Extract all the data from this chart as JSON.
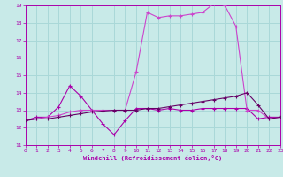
{
  "xlabel": "Windchill (Refroidissement éolien,°C)",
  "bg_color": "#c8eae8",
  "grid_color": "#aad8d8",
  "line_color1": "#aa00aa",
  "line_color2": "#cc44cc",
  "line_color3": "#660066",
  "xmin": 0,
  "xmax": 23,
  "ymin": 11,
  "ymax": 19,
  "series1_x": [
    0,
    1,
    2,
    3,
    4,
    5,
    6,
    7,
    8,
    9,
    10,
    11,
    12,
    13,
    14,
    15,
    16,
    17,
    18,
    19,
    20,
    21,
    22,
    23
  ],
  "series1_y": [
    12.4,
    12.6,
    12.6,
    13.2,
    14.4,
    13.8,
    13.0,
    12.2,
    11.6,
    12.4,
    13.1,
    13.1,
    13.0,
    13.1,
    13.0,
    13.0,
    13.1,
    13.1,
    13.1,
    13.1,
    13.1,
    12.5,
    12.6,
    12.6
  ],
  "series2_x": [
    0,
    1,
    2,
    3,
    4,
    5,
    6,
    7,
    8,
    9,
    10,
    11,
    12,
    13,
    14,
    15,
    16,
    17,
    18,
    19,
    20,
    21,
    22,
    23
  ],
  "series2_y": [
    12.4,
    12.5,
    12.6,
    12.7,
    12.9,
    13.0,
    13.0,
    13.0,
    13.0,
    13.0,
    15.2,
    18.6,
    18.3,
    18.4,
    18.4,
    18.5,
    18.6,
    19.1,
    19.0,
    17.8,
    13.0,
    13.0,
    12.5,
    12.6
  ],
  "series3_x": [
    0,
    1,
    2,
    3,
    4,
    5,
    6,
    7,
    8,
    9,
    10,
    11,
    12,
    13,
    14,
    15,
    16,
    17,
    18,
    19,
    20,
    21,
    22,
    23
  ],
  "series3_y": [
    12.4,
    12.5,
    12.5,
    12.6,
    12.7,
    12.8,
    12.9,
    12.95,
    13.0,
    13.0,
    13.0,
    13.1,
    13.1,
    13.2,
    13.3,
    13.4,
    13.5,
    13.6,
    13.7,
    13.8,
    14.0,
    13.3,
    12.5,
    12.6
  ]
}
